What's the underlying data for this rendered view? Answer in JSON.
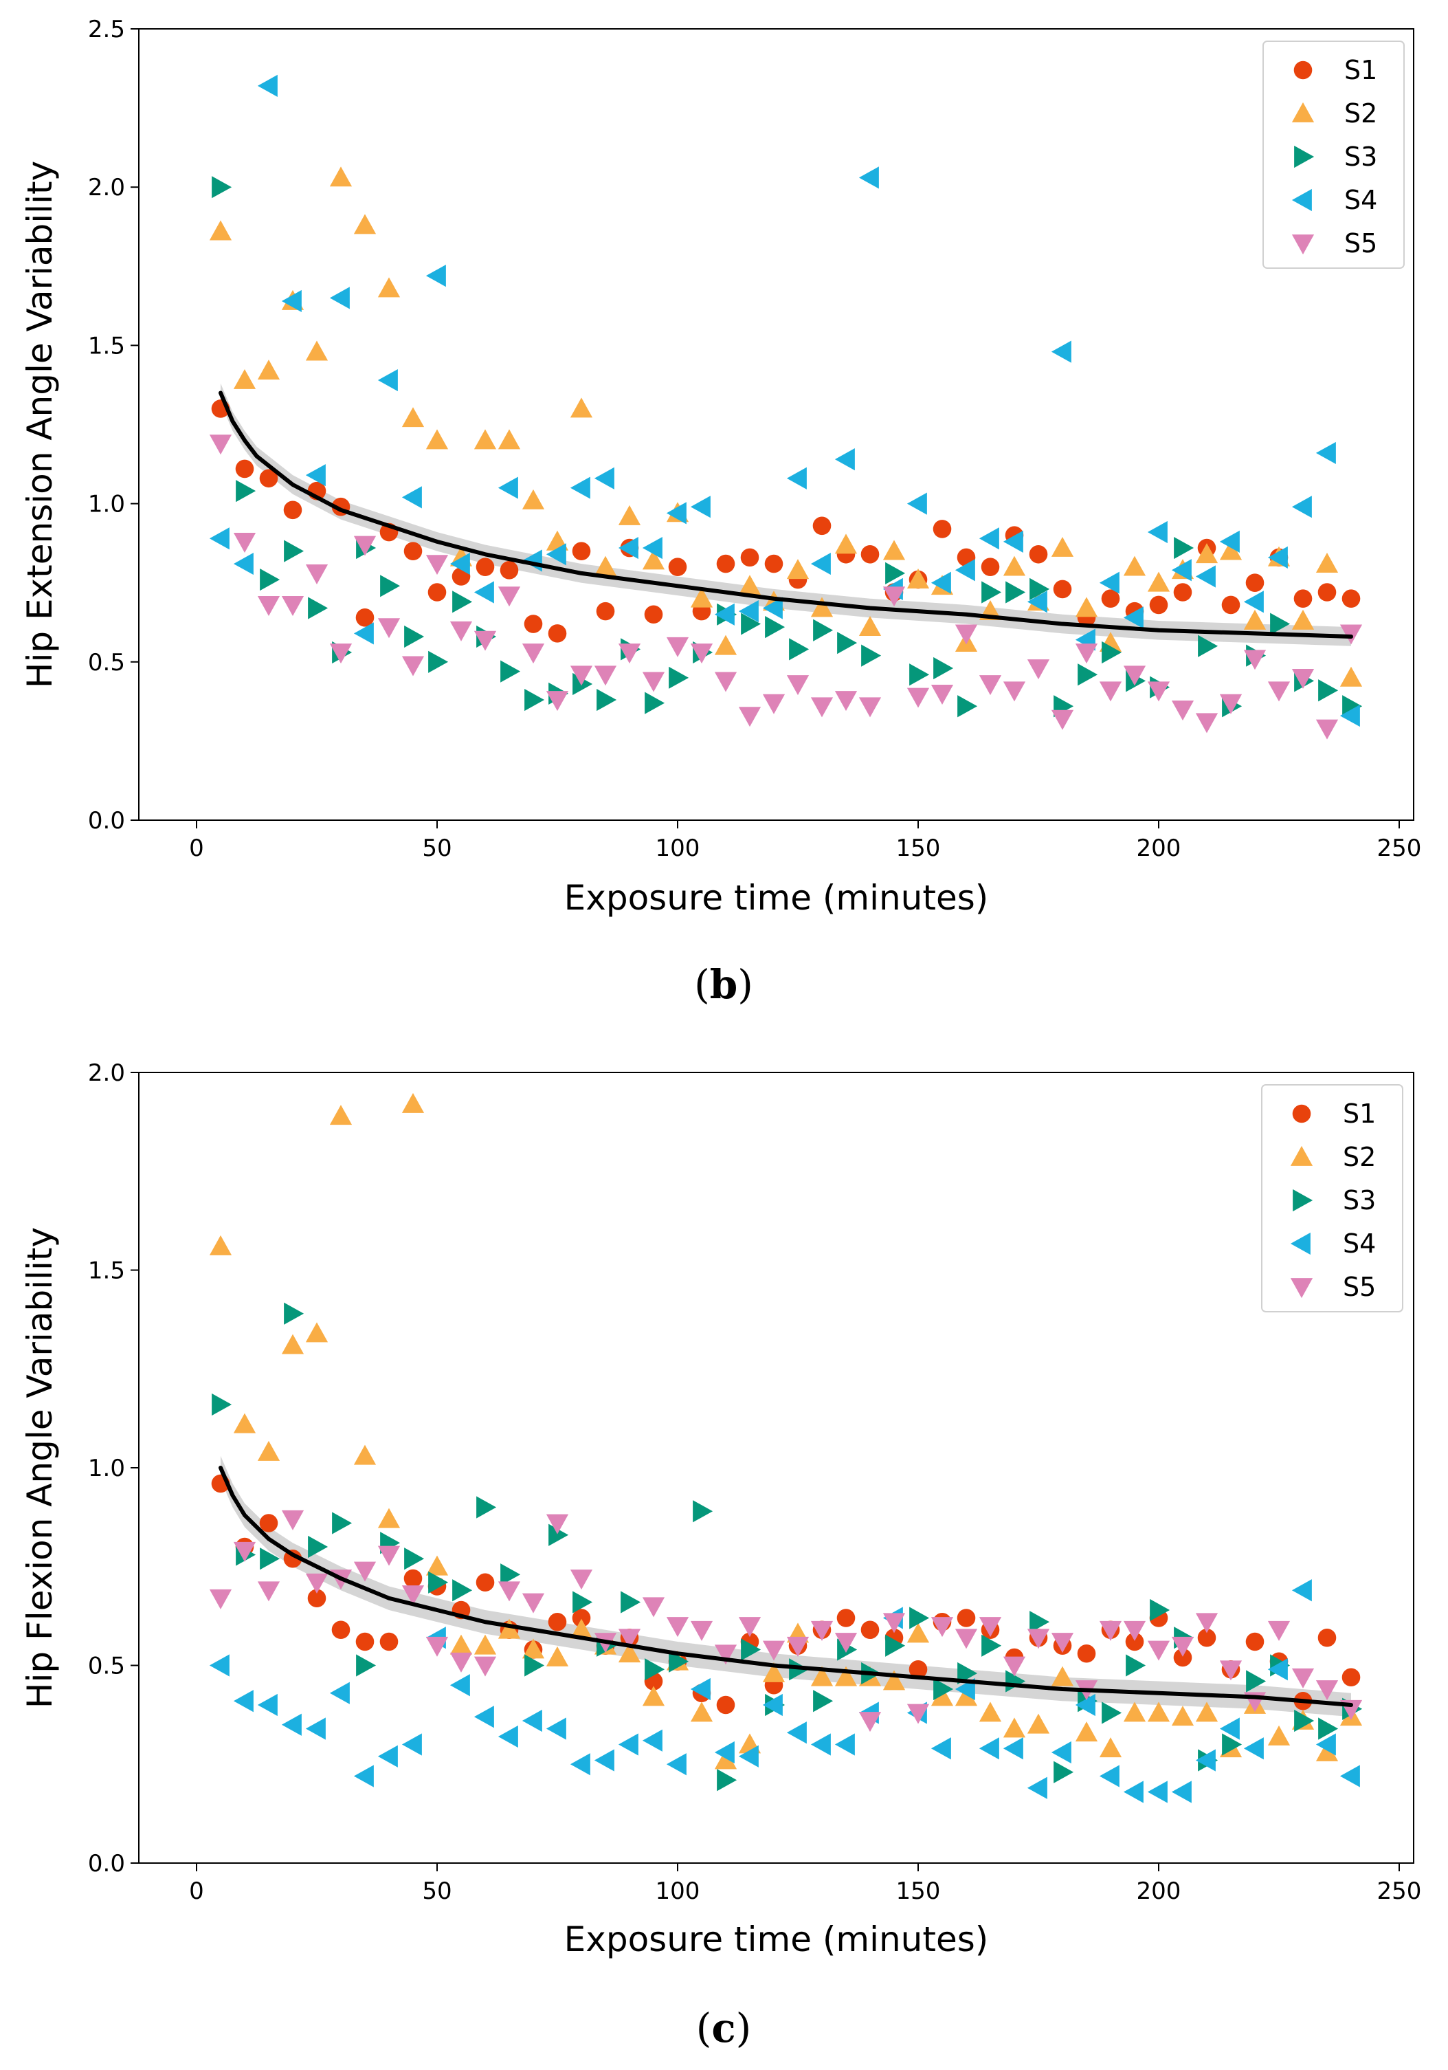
{
  "colors": {
    "S1": "#e8420c",
    "S2": "#f9ad45",
    "S3": "#05977a",
    "S4": "#1cb0e0",
    "S5": "#de83b7",
    "fit": "#000000",
    "band": "#b3b3b3"
  },
  "panels": [
    {
      "label": {
        "open": "(",
        "letter": "b",
        "close": ")"
      },
      "legend_location": "upper right"
    },
    {
      "label": {
        "open": "(",
        "letter": "c",
        "close": ")"
      },
      "legend_location": "upper right"
    }
  ],
  "chart_data": [
    {
      "type": "scatter",
      "xlabel": "Exposure time (minutes)",
      "ylabel": "Hip Extension Angle Variability",
      "xlim": [
        -12,
        253
      ],
      "ylim": [
        0,
        2.5
      ],
      "xticks": [
        "0",
        "50",
        "100",
        "150",
        "200",
        "250"
      ],
      "yticks": [
        "0.0",
        "0.5",
        "1.0",
        "1.5",
        "2.0",
        "2.5"
      ],
      "xtick_values": [
        0,
        50,
        100,
        150,
        200,
        250
      ],
      "ytick_values": [
        0,
        0.5,
        1.0,
        1.5,
        2.0,
        2.5
      ],
      "grid": false,
      "legend": "upper right",
      "x": [
        5,
        10,
        15,
        20,
        25,
        30,
        35,
        40,
        45,
        50,
        55,
        60,
        65,
        70,
        75,
        80,
        85,
        90,
        95,
        100,
        105,
        110,
        115,
        120,
        125,
        130,
        135,
        140,
        145,
        150,
        155,
        160,
        165,
        170,
        175,
        180,
        185,
        190,
        195,
        200,
        205,
        210,
        215,
        220,
        225,
        230,
        235,
        240
      ],
      "series": [
        {
          "name": "S1",
          "marker": "circle",
          "values": [
            1.3,
            1.11,
            1.08,
            0.98,
            1.04,
            0.99,
            0.64,
            0.91,
            0.85,
            0.72,
            0.77,
            0.8,
            0.79,
            0.62,
            0.59,
            0.85,
            0.66,
            0.86,
            0.65,
            0.8,
            0.66,
            0.81,
            0.83,
            0.81,
            0.76,
            0.93,
            0.84,
            0.84,
            0.72,
            0.76,
            0.92,
            0.83,
            0.8,
            0.9,
            0.84,
            0.73,
            0.64,
            0.7,
            0.66,
            0.68,
            0.72,
            0.86,
            0.68,
            0.75,
            0.83,
            0.7,
            0.72,
            0.7
          ]
        },
        {
          "name": "S2",
          "marker": "triangle-up",
          "values": [
            1.86,
            1.39,
            1.42,
            1.64,
            1.48,
            2.03,
            1.88,
            1.68,
            1.27,
            1.2,
            0.83,
            1.2,
            1.2,
            1.01,
            0.88,
            1.3,
            0.8,
            0.96,
            0.82,
            0.97,
            0.7,
            0.55,
            0.74,
            0.69,
            0.79,
            0.67,
            0.87,
            0.61,
            0.85,
            0.76,
            0.74,
            0.56,
            0.66,
            0.8,
            0.69,
            0.86,
            0.67,
            0.56,
            0.8,
            0.75,
            0.79,
            0.84,
            0.85,
            0.63,
            0.83,
            0.63,
            0.81,
            0.45
          ]
        },
        {
          "name": "S3",
          "marker": "triangle-right",
          "values": [
            2.0,
            1.04,
            0.76,
            0.85,
            0.67,
            0.53,
            0.86,
            0.74,
            0.58,
            0.5,
            0.69,
            0.58,
            0.47,
            0.38,
            0.4,
            0.43,
            0.38,
            0.54,
            0.37,
            0.45,
            0.53,
            0.65,
            0.62,
            0.61,
            0.54,
            0.6,
            0.56,
            0.52,
            0.78,
            0.46,
            0.48,
            0.36,
            0.72,
            0.72,
            0.73,
            0.36,
            0.46,
            0.53,
            0.44,
            0.42,
            0.86,
            0.55,
            0.36,
            0.52,
            0.62,
            0.44,
            0.41,
            0.36
          ]
        },
        {
          "name": "S4",
          "marker": "triangle-left",
          "values": [
            0.89,
            0.81,
            2.32,
            1.64,
            1.09,
            1.65,
            0.59,
            1.39,
            1.02,
            1.72,
            0.81,
            0.72,
            1.05,
            0.82,
            0.84,
            1.05,
            1.08,
            0.86,
            0.86,
            0.97,
            0.99,
            0.65,
            0.66,
            0.67,
            1.08,
            0.81,
            1.14,
            2.03,
            0.73,
            1.0,
            0.75,
            0.79,
            0.89,
            0.88,
            0.69,
            1.48,
            0.57,
            0.75,
            0.64,
            0.91,
            0.79,
            0.77,
            0.88,
            0.69,
            0.83,
            0.99,
            1.16,
            0.33
          ]
        },
        {
          "name": "S5",
          "marker": "triangle-down",
          "values": [
            1.19,
            0.88,
            0.68,
            0.68,
            0.78,
            0.53,
            0.87,
            0.61,
            0.49,
            0.81,
            0.6,
            0.57,
            0.71,
            0.53,
            0.38,
            0.46,
            0.46,
            0.53,
            0.44,
            0.55,
            0.53,
            0.44,
            0.33,
            0.37,
            0.43,
            0.36,
            0.38,
            0.36,
            0.71,
            0.39,
            0.4,
            0.59,
            0.43,
            0.41,
            0.48,
            0.32,
            0.53,
            0.41,
            0.46,
            0.41,
            0.35,
            0.31,
            0.37,
            0.51,
            0.41,
            0.45,
            0.29,
            0.59
          ]
        }
      ],
      "fit": {
        "x": [
          5,
          7.5,
          10,
          12.5,
          15,
          20,
          25,
          30,
          40,
          50,
          60,
          80,
          100,
          120,
          140,
          160,
          180,
          200,
          220,
          240
        ],
        "y": [
          1.35,
          1.26,
          1.2,
          1.15,
          1.12,
          1.06,
          1.02,
          0.98,
          0.93,
          0.88,
          0.84,
          0.78,
          0.74,
          0.7,
          0.67,
          0.65,
          0.62,
          0.6,
          0.59,
          0.58
        ]
      }
    },
    {
      "type": "scatter",
      "xlabel": "Exposure time (minutes)",
      "ylabel": "Hip Flexion Angle Variability",
      "xlim": [
        -12,
        253
      ],
      "ylim": [
        0,
        2.0
      ],
      "xticks": [
        "0",
        "50",
        "100",
        "150",
        "200",
        "250"
      ],
      "yticks": [
        "0.0",
        "0.5",
        "1.0",
        "1.5",
        "2.0"
      ],
      "xtick_values": [
        0,
        50,
        100,
        150,
        200,
        250
      ],
      "ytick_values": [
        0,
        0.5,
        1.0,
        1.5,
        2.0
      ],
      "grid": false,
      "legend": "upper right",
      "x": [
        5,
        10,
        15,
        20,
        25,
        30,
        35,
        40,
        45,
        50,
        55,
        60,
        65,
        70,
        75,
        80,
        85,
        90,
        95,
        100,
        105,
        110,
        115,
        120,
        125,
        130,
        135,
        140,
        145,
        150,
        155,
        160,
        165,
        170,
        175,
        180,
        185,
        190,
        195,
        200,
        205,
        210,
        215,
        220,
        225,
        230,
        235,
        240
      ],
      "series": [
        {
          "name": "S1",
          "marker": "circle",
          "values": [
            0.96,
            0.8,
            0.86,
            0.77,
            0.67,
            0.59,
            0.56,
            0.56,
            0.72,
            0.7,
            0.64,
            0.71,
            0.59,
            0.54,
            0.61,
            0.62,
            0.55,
            0.57,
            0.46,
            0.51,
            0.43,
            0.4,
            0.56,
            0.45,
            0.55,
            0.59,
            0.62,
            0.59,
            0.57,
            0.49,
            0.61,
            0.62,
            0.59,
            0.52,
            0.57,
            0.55,
            0.53,
            0.59,
            0.56,
            0.62,
            0.52,
            0.57,
            0.49,
            0.56,
            0.51,
            0.41,
            0.57,
            0.47
          ]
        },
        {
          "name": "S2",
          "marker": "triangle-up",
          "values": [
            1.56,
            1.11,
            1.04,
            1.31,
            1.34,
            1.89,
            1.03,
            0.87,
            1.92,
            0.75,
            0.55,
            0.55,
            0.59,
            0.54,
            0.52,
            0.59,
            0.55,
            0.53,
            0.42,
            0.51,
            0.38,
            0.26,
            0.3,
            0.48,
            0.58,
            0.47,
            0.47,
            0.47,
            0.46,
            0.58,
            0.42,
            0.42,
            0.38,
            0.34,
            0.35,
            0.47,
            0.33,
            0.29,
            0.38,
            0.38,
            0.37,
            0.38,
            0.29,
            0.4,
            0.32,
            0.36,
            0.28,
            0.37
          ]
        },
        {
          "name": "S3",
          "marker": "triangle-right",
          "values": [
            1.16,
            0.78,
            0.77,
            1.39,
            0.8,
            0.86,
            0.5,
            0.81,
            0.77,
            0.71,
            0.69,
            0.9,
            0.73,
            0.5,
            0.83,
            0.66,
            0.55,
            0.66,
            0.49,
            0.51,
            0.89,
            0.21,
            0.54,
            0.4,
            0.49,
            0.41,
            0.54,
            0.48,
            0.55,
            0.62,
            0.44,
            0.48,
            0.55,
            0.46,
            0.61,
            0.23,
            0.41,
            0.38,
            0.5,
            0.64,
            0.57,
            0.26,
            0.3,
            0.46,
            0.5,
            0.36,
            0.34,
            0.39
          ]
        },
        {
          "name": "S4",
          "marker": "triangle-left",
          "values": [
            0.5,
            0.41,
            0.4,
            0.35,
            0.34,
            0.43,
            0.22,
            0.27,
            0.3,
            0.57,
            0.45,
            0.37,
            0.32,
            0.36,
            0.34,
            0.25,
            0.26,
            0.3,
            0.31,
            0.25,
            0.44,
            0.28,
            0.27,
            0.4,
            0.33,
            0.3,
            0.3,
            0.38,
            0.62,
            0.38,
            0.29,
            0.44,
            0.29,
            0.29,
            0.19,
            0.28,
            0.4,
            0.22,
            0.18,
            0.18,
            0.18,
            0.26,
            0.34,
            0.29,
            0.49,
            0.69,
            0.3,
            0.22
          ]
        },
        {
          "name": "S5",
          "marker": "triangle-down",
          "values": [
            0.67,
            0.79,
            0.69,
            0.87,
            0.71,
            0.72,
            0.74,
            0.78,
            0.68,
            0.55,
            0.51,
            0.5,
            0.69,
            0.66,
            0.86,
            0.72,
            0.56,
            0.57,
            0.65,
            0.6,
            0.59,
            0.53,
            0.6,
            0.54,
            0.55,
            0.59,
            0.56,
            0.36,
            0.61,
            0.38,
            0.6,
            0.57,
            0.6,
            0.5,
            0.57,
            0.56,
            0.44,
            0.59,
            0.59,
            0.54,
            0.55,
            0.61,
            0.49,
            0.41,
            0.59,
            0.47,
            0.44,
            0.39
          ]
        }
      ],
      "fit": {
        "x": [
          5,
          7.5,
          10,
          12.5,
          15,
          20,
          25,
          30,
          40,
          50,
          60,
          80,
          100,
          120,
          140,
          160,
          180,
          200,
          220,
          240
        ],
        "y": [
          1.0,
          0.93,
          0.88,
          0.85,
          0.82,
          0.78,
          0.75,
          0.72,
          0.67,
          0.64,
          0.61,
          0.57,
          0.53,
          0.5,
          0.48,
          0.46,
          0.44,
          0.43,
          0.42,
          0.4
        ]
      }
    }
  ]
}
